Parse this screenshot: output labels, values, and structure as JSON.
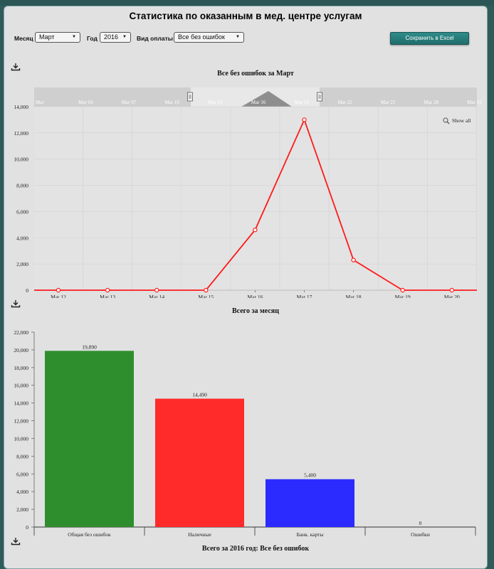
{
  "page": {
    "title": "Статистика по оказанным в мед. центре услугам"
  },
  "filters": {
    "month_label": "Месяц",
    "month_value": "Март",
    "year_label": "Год",
    "year_value": "2016",
    "payment_label": "Вид оплаты",
    "payment_value": "Все без ошибок",
    "export_label": "Сохранить в Excel"
  },
  "colors": {
    "line": "#ff1a1a",
    "bar_green": "#2e8e2e",
    "bar_red": "#ff2b2b",
    "bar_blue": "#2b2bff",
    "export_button": "#247b79"
  },
  "icons": {
    "download": "download-icon",
    "zoom": "magnifier-icon"
  },
  "chart_data": [
    {
      "type": "line",
      "title": "Все без ошибок за Март",
      "x": [
        "Mar 12",
        "Mar 13",
        "Mar 14",
        "Mar 15",
        "Mar 16",
        "Mar 17",
        "Mar 18",
        "Mar 19",
        "Mar 20"
      ],
      "series": [
        {
          "values": [
            0,
            0,
            0,
            0,
            4600,
            13000,
            2300,
            0,
            0
          ]
        }
      ],
      "yticks": [
        "0",
        "2,000",
        "4,000",
        "6,000",
        "8,000",
        "10,000",
        "12,000",
        "14,000"
      ],
      "ylim": [
        0,
        14000
      ],
      "navigator_labels": [
        "Mar",
        "Mar 04",
        "Mar 07",
        "Mar 10",
        "Mar 13",
        "Mar 16",
        "Mar 19",
        "Mar 22",
        "Mar 25",
        "Mar 28",
        "Mar 31"
      ],
      "show_all_label": "Show all",
      "grid": true
    },
    {
      "type": "bar",
      "title": "Всего за месяц",
      "categories": [
        "Общая без ошибок",
        "Наличные",
        "Банк. карты",
        "Ошибки"
      ],
      "values": [
        19890,
        14490,
        5400,
        0
      ],
      "data_labels": [
        "19,890",
        "14,490",
        "5,400",
        "0"
      ],
      "yticks": [
        "0",
        "2,000",
        "4,000",
        "6,000",
        "8,000",
        "10,000",
        "12,000",
        "14,000",
        "16,000",
        "18,000",
        "20,000",
        "22,000"
      ],
      "ylim": [
        0,
        22000
      ],
      "grid": false
    },
    {
      "type": "bar",
      "title": "Всего за 2016 год: Все без ошибок"
    }
  ]
}
